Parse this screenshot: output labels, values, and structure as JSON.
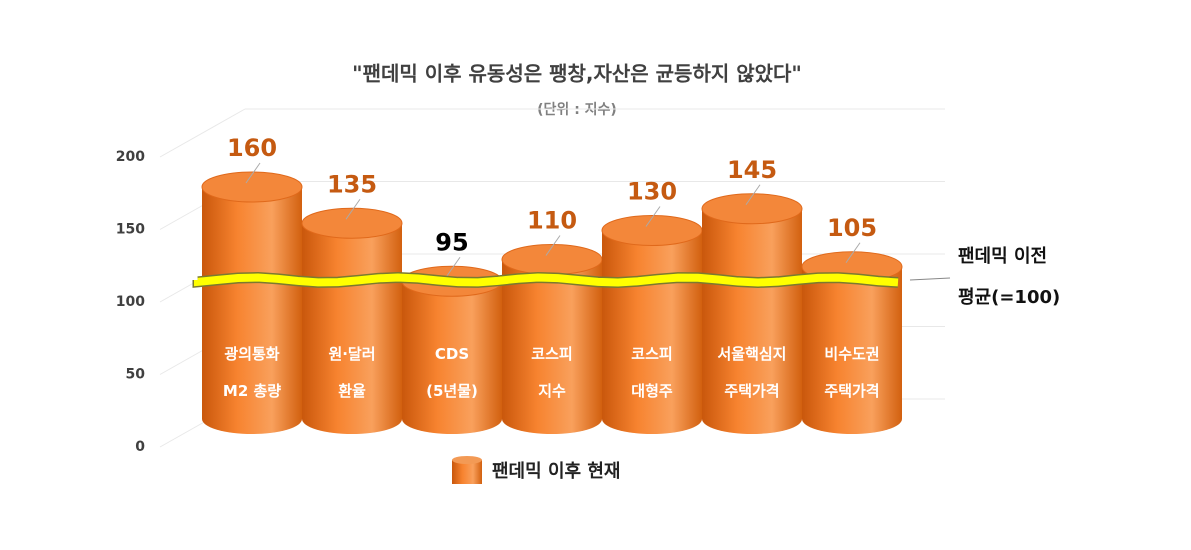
{
  "chart_data": {
    "type": "cylinder_bar",
    "title": "\"팬데믹 이후 유동성은 팽창,자산은 균등하지 않았다\"",
    "subtitle": "(단위 : 지수)",
    "categories": [
      "광의통화\nM2 총량",
      "원·달러\n환율",
      "CDS\n(5년물)",
      "코스피\n지수",
      "코스피\n대형주",
      "서울핵심지\n주택가격",
      "비수도권\n주택가격"
    ],
    "series": [
      {
        "name": "팬데믹 이후 현재",
        "color": "#ed7d31",
        "values": [
          160,
          135,
          95,
          110,
          130,
          145,
          105
        ],
        "value_label_colors": [
          "#c55a11",
          "#c55a11",
          "#000000",
          "#c55a11",
          "#c55a11",
          "#c55a11",
          "#c55a11"
        ]
      }
    ],
    "ylim": [
      0,
      200
    ],
    "yticks": [
      0,
      50,
      100,
      150,
      200
    ],
    "grid": true,
    "reference_line": {
      "value": 100,
      "color": "#ffff00",
      "label": [
        "팬데믹 이전",
        "평균(=100)"
      ]
    }
  }
}
